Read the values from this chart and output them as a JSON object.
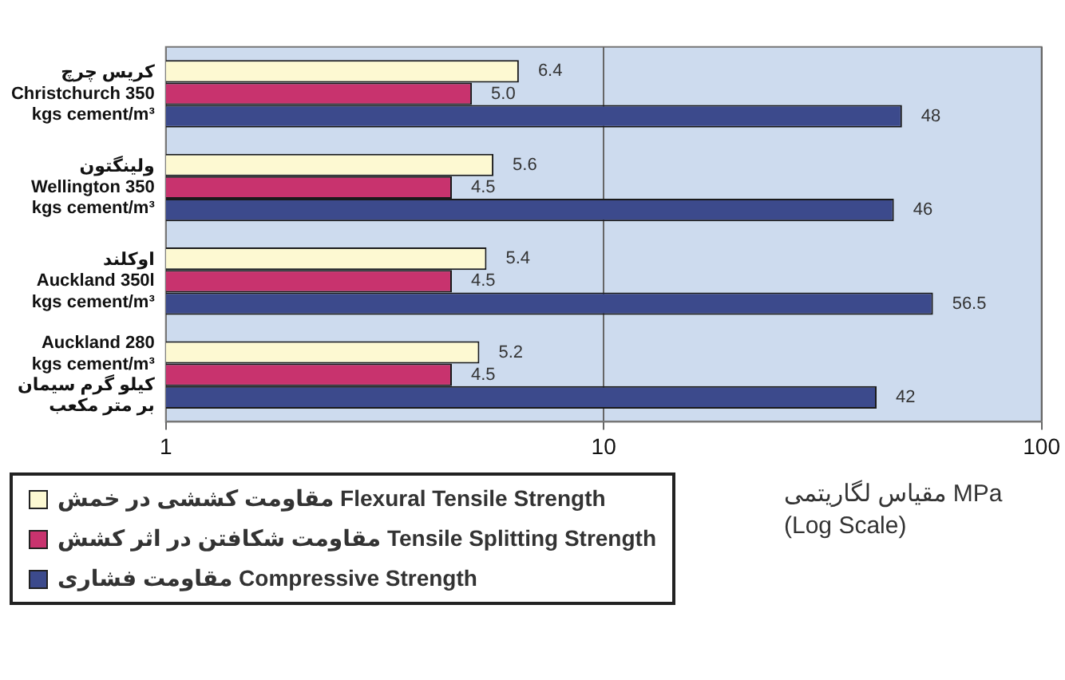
{
  "chart_data": {
    "type": "bar",
    "orientation": "horizontal",
    "categories": [
      "کریس چرچ\nChristchurch 350\nkgs cement/m³",
      "ولینگتون\nWellington 350\nkgs cement/m³",
      "اوکلند\nAuckland 350l\nkgs cement/m³",
      "Auckland 280\nkgs cement/m³\nکیلو گرم سیمان\nبر متر مکعب"
    ],
    "series": [
      {
        "name": "مقاومت کششی در خمش Flexural Tensile Strength",
        "color": "#fdf9d2",
        "values": [
          6.4,
          5.6,
          5.4,
          5.2
        ],
        "value_labels": [
          "6.4",
          "5.6",
          "5.4",
          "5.2"
        ]
      },
      {
        "name": "مقاومت شکافتن در اثر کشش Tensile Splitting Strength",
        "color": "#c8336e",
        "values": [
          5.0,
          4.5,
          4.5,
          4.5
        ],
        "value_labels": [
          "5.0",
          "4.5",
          "4.5",
          "4.5"
        ]
      },
      {
        "name": "مقاومت فشاری Compressive Strength",
        "color": "#3c4a8c",
        "values": [
          48,
          46,
          56.5,
          42
        ],
        "value_labels": [
          "48",
          "46",
          "56.5",
          "42"
        ]
      }
    ],
    "xlabel": "مقیاس لگاریتمی MPa (Log Scale)",
    "log": "x",
    "xlim": [
      1,
      100
    ],
    "xticks": [
      1,
      10,
      100
    ],
    "grid": "x",
    "legend": "bottom left"
  }
}
